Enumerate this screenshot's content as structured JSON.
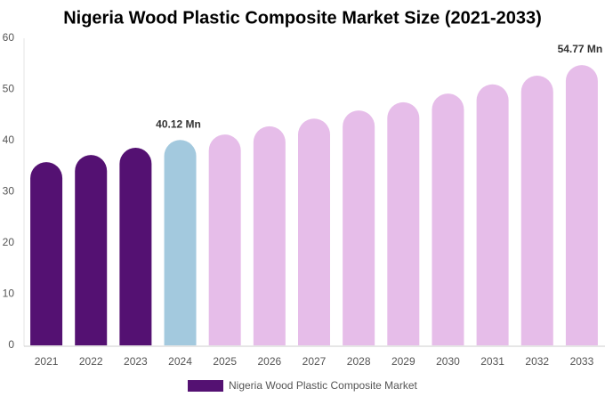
{
  "chart_data": {
    "type": "bar",
    "title": "Nigeria Wood Plastic Composite Market Size (2021-2033)",
    "categories": [
      "2021",
      "2022",
      "2023",
      "2024",
      "2025",
      "2026",
      "2027",
      "2028",
      "2029",
      "2030",
      "2031",
      "2032",
      "2033"
    ],
    "series": [
      {
        "name": "Nigeria Wood Plastic Composite Market",
        "color": "#541172",
        "values": [
          35.8,
          37.2,
          38.6,
          40.12,
          41.2,
          42.8,
          44.3,
          45.9,
          47.5,
          49.2,
          51.0,
          52.7,
          54.77
        ],
        "value_labels": [
          null,
          null,
          null,
          "40.12 Mn",
          null,
          null,
          null,
          null,
          null,
          null,
          null,
          null,
          "54.77 Mn"
        ],
        "bar_colors": [
          "#541172",
          "#541172",
          "#541172",
          "#a3c9de",
          "#e6bde9",
          "#e6bde9",
          "#e6bde9",
          "#e6bde9",
          "#e6bde9",
          "#e6bde9",
          "#e6bde9",
          "#e6bde9",
          "#e6bde9"
        ]
      }
    ],
    "ylim": [
      0,
      60
    ],
    "yticks": [
      0,
      10,
      20,
      30,
      40,
      50,
      60
    ],
    "grid": false
  }
}
